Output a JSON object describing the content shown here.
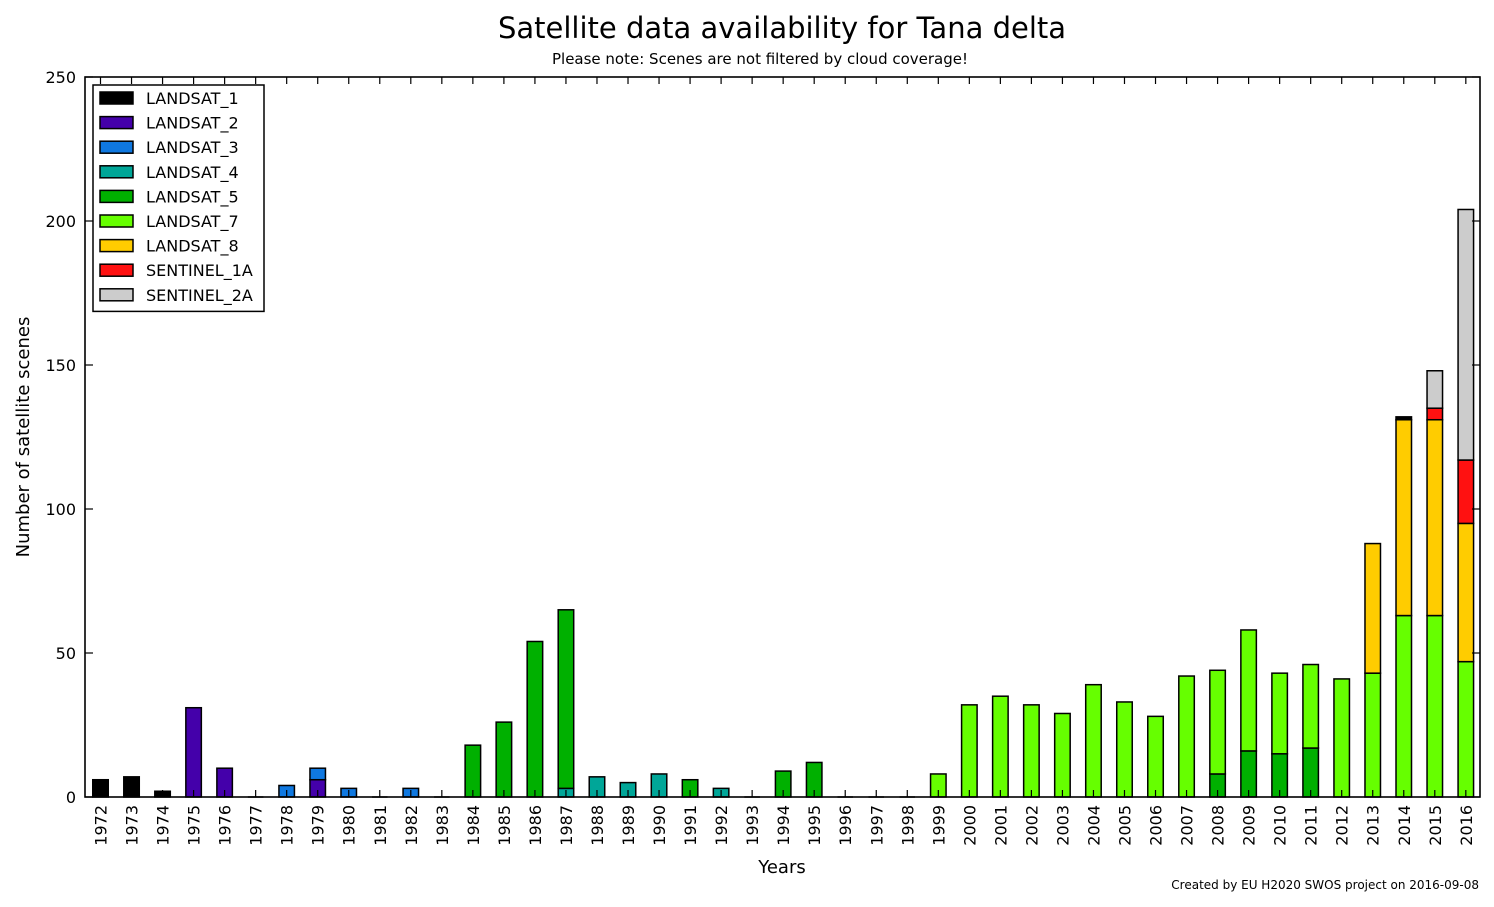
{
  "chart_data": {
    "type": "bar",
    "stacked": true,
    "title": "Satellite data availability for Tana delta",
    "subtitle": "Please note: Scenes are not filtered by cloud coverage!",
    "xlabel": "Years",
    "ylabel": "Number of satellite scenes",
    "ylim": [
      0,
      250
    ],
    "yticks": [
      0,
      50,
      100,
      150,
      200,
      250
    ],
    "legend_position": "top-left",
    "grid": false,
    "credit": "Created by EU H2020 SWOS project on 2016-09-08",
    "categories": [
      "1972",
      "1973",
      "1974",
      "1975",
      "1976",
      "1977",
      "1978",
      "1979",
      "1980",
      "1981",
      "1982",
      "1983",
      "1984",
      "1985",
      "1986",
      "1987",
      "1988",
      "1989",
      "1990",
      "1991",
      "1992",
      "1993",
      "1994",
      "1995",
      "1996",
      "1997",
      "1998",
      "1999",
      "2000",
      "2001",
      "2002",
      "2003",
      "2004",
      "2005",
      "2006",
      "2007",
      "2008",
      "2009",
      "2010",
      "2011",
      "2012",
      "2013",
      "2014",
      "2015",
      "2016"
    ],
    "series": [
      {
        "name": "LANDSAT_1",
        "color": "#000000",
        "values": [
          6,
          7,
          2,
          0,
          0,
          0,
          0,
          0,
          0,
          0,
          0,
          0,
          0,
          0,
          0,
          0,
          0,
          0,
          0,
          0,
          0,
          0,
          0,
          0,
          0,
          0,
          0,
          0,
          0,
          0,
          0,
          0,
          0,
          0,
          0,
          0,
          0,
          0,
          0,
          0,
          0,
          0,
          0,
          0,
          0
        ]
      },
      {
        "name": "LANDSAT_2",
        "color": "#4400aa",
        "values": [
          0,
          0,
          0,
          31,
          10,
          0,
          0,
          6,
          0,
          0,
          0,
          0,
          0,
          0,
          0,
          0,
          0,
          0,
          0,
          0,
          0,
          0,
          0,
          0,
          0,
          0,
          0,
          0,
          0,
          0,
          0,
          0,
          0,
          0,
          0,
          0,
          0,
          0,
          0,
          0,
          0,
          0,
          0,
          0,
          0
        ]
      },
      {
        "name": "LANDSAT_3",
        "color": "#0f78e0",
        "values": [
          0,
          0,
          0,
          0,
          0,
          0,
          4,
          4,
          3,
          0,
          3,
          0,
          0,
          0,
          0,
          0,
          0,
          0,
          0,
          0,
          0,
          0,
          0,
          0,
          0,
          0,
          0,
          0,
          0,
          0,
          0,
          0,
          0,
          0,
          0,
          0,
          0,
          0,
          0,
          0,
          0,
          0,
          0,
          0,
          0
        ]
      },
      {
        "name": "LANDSAT_4",
        "color": "#00a698",
        "values": [
          0,
          0,
          0,
          0,
          0,
          0,
          0,
          0,
          0,
          0,
          0,
          0,
          0,
          0,
          0,
          3,
          7,
          5,
          8,
          0,
          3,
          0,
          0,
          0,
          0,
          0,
          0,
          0,
          0,
          0,
          0,
          0,
          0,
          0,
          0,
          0,
          0,
          0,
          0,
          0,
          0,
          0,
          0,
          0,
          0
        ]
      },
      {
        "name": "LANDSAT_5",
        "color": "#00b000",
        "values": [
          0,
          0,
          0,
          0,
          0,
          0,
          0,
          0,
          0,
          0,
          0,
          0,
          18,
          26,
          54,
          62,
          0,
          0,
          0,
          6,
          0,
          0,
          9,
          12,
          0,
          0,
          0,
          0,
          0,
          0,
          0,
          0,
          0,
          0,
          0,
          0,
          8,
          16,
          15,
          17,
          0,
          0,
          0,
          0,
          0
        ]
      },
      {
        "name": "LANDSAT_7",
        "color": "#66ff00",
        "values": [
          0,
          0,
          0,
          0,
          0,
          0,
          0,
          0,
          0,
          0,
          0,
          0,
          0,
          0,
          0,
          0,
          0,
          0,
          0,
          0,
          0,
          0,
          0,
          0,
          0,
          0,
          0,
          8,
          32,
          35,
          32,
          29,
          39,
          33,
          28,
          42,
          36,
          42,
          28,
          29,
          41,
          43,
          63,
          63,
          47
        ]
      },
      {
        "name": "LANDSAT_8",
        "color": "#ffcc00",
        "values": [
          0,
          0,
          0,
          0,
          0,
          0,
          0,
          0,
          0,
          0,
          0,
          0,
          0,
          0,
          0,
          0,
          0,
          0,
          0,
          0,
          0,
          0,
          0,
          0,
          0,
          0,
          0,
          0,
          0,
          0,
          0,
          0,
          0,
          0,
          0,
          0,
          0,
          0,
          0,
          0,
          0,
          45,
          68,
          68,
          48
        ]
      },
      {
        "name": "SENTINEL_1A",
        "color": "#ff1111",
        "values": [
          0,
          0,
          0,
          0,
          0,
          0,
          0,
          0,
          0,
          0,
          0,
          0,
          0,
          0,
          0,
          0,
          0,
          0,
          0,
          0,
          0,
          0,
          0,
          0,
          0,
          0,
          0,
          0,
          0,
          0,
          0,
          0,
          0,
          0,
          0,
          0,
          0,
          0,
          0,
          0,
          0,
          0,
          0,
          4,
          22
        ]
      },
      {
        "name": "SENTINEL_2A",
        "color": "#cccccc",
        "values": [
          0,
          0,
          0,
          0,
          0,
          0,
          0,
          0,
          0,
          0,
          0,
          0,
          0,
          0,
          0,
          0,
          0,
          0,
          0,
          0,
          0,
          0,
          0,
          0,
          0,
          0,
          0,
          0,
          0,
          0,
          0,
          0,
          0,
          0,
          0,
          0,
          0,
          0,
          0,
          0,
          0,
          0,
          0,
          13,
          87
        ]
      }
    ],
    "extra_marks": [
      {
        "category": "2014",
        "series": "LANDSAT_1",
        "value": 1
      }
    ]
  }
}
